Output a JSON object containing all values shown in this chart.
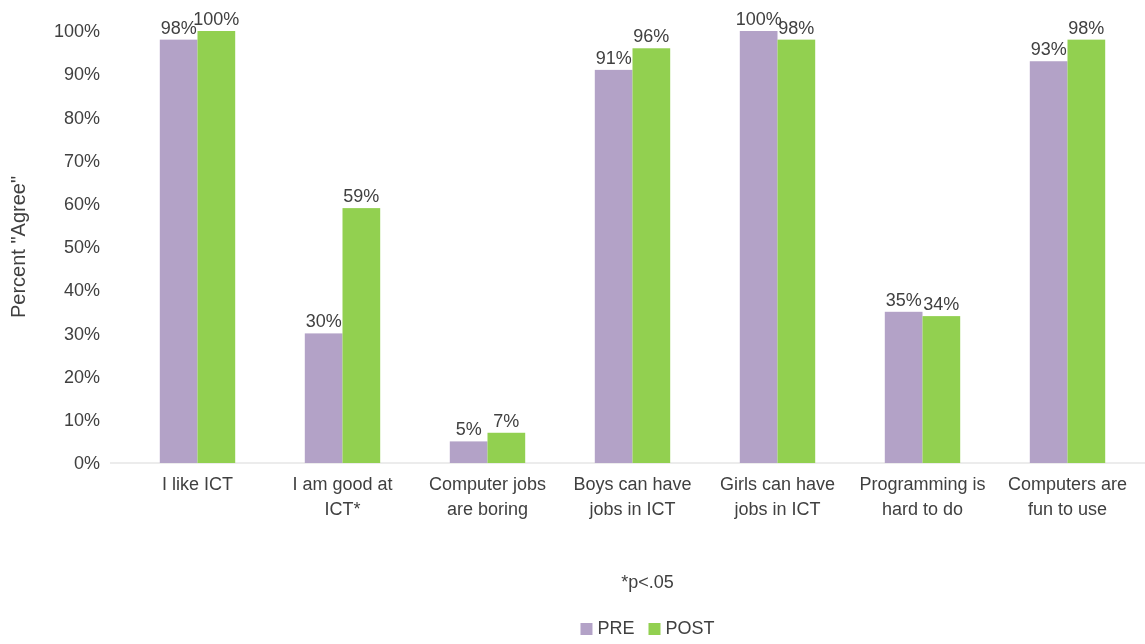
{
  "chart_data": {
    "type": "bar",
    "categories": [
      "I like ICT",
      "I am good at ICT*",
      "Computer jobs are boring",
      "Boys can have jobs in ICT",
      "Girls can have jobs in ICT",
      "Programming is hard to do",
      "Computers are fun to use"
    ],
    "series": [
      {
        "name": "PRE",
        "color": "#b3a2c7",
        "values": [
          98,
          30,
          5,
          91,
          100,
          35,
          93
        ],
        "value_labels": [
          "98%",
          "30%",
          "5%",
          "91%",
          "100%",
          "35%",
          "93%"
        ]
      },
      {
        "name": "POST",
        "color": "#92d050",
        "values": [
          100,
          59,
          7,
          96,
          98,
          34,
          98
        ],
        "value_labels": [
          "100%",
          "59%",
          "7%",
          "96%",
          "98%",
          "34%",
          "98%"
        ]
      }
    ],
    "ylabel": "Percent \"Agree\"",
    "xlabel": "*p<.05",
    "ylim": [
      0,
      100
    ],
    "yticks": [
      {
        "value": 0,
        "label": "0%"
      },
      {
        "value": 10,
        "label": "10%"
      },
      {
        "value": 20,
        "label": "20%"
      },
      {
        "value": 30,
        "label": "30%"
      },
      {
        "value": 40,
        "label": "40%"
      },
      {
        "value": 50,
        "label": "50%"
      },
      {
        "value": 60,
        "label": "60%"
      },
      {
        "value": 70,
        "label": "70%"
      },
      {
        "value": 80,
        "label": "80%"
      },
      {
        "value": 90,
        "label": "90%"
      },
      {
        "value": 100,
        "label": "100%"
      }
    ],
    "grid": false,
    "legend": "bottom"
  }
}
